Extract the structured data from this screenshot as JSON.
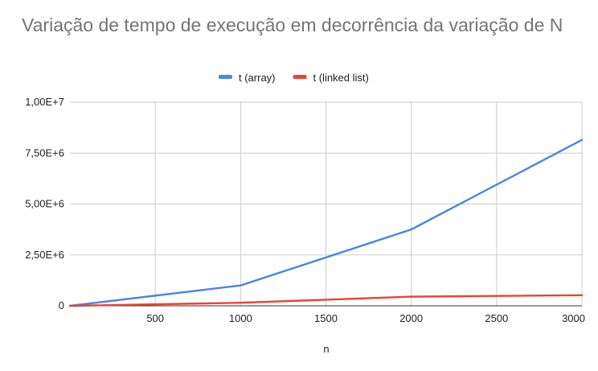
{
  "chart_data": {
    "type": "line",
    "title": "Variação de tempo de execução em decorrência da variação de N",
    "xlabel": "n",
    "ylabel": "",
    "x": [
      0,
      1000,
      2000,
      3000
    ],
    "xlim": [
      0,
      3000
    ],
    "ylim": [
      0,
      10000000
    ],
    "x_ticks": [
      500,
      1000,
      1500,
      2000,
      2500,
      3000
    ],
    "x_tick_labels": [
      "500",
      "1000",
      "1500",
      "2000",
      "2500",
      "3000"
    ],
    "y_ticks": [
      0,
      2500000,
      5000000,
      7500000,
      10000000
    ],
    "y_tick_labels": [
      "0",
      "2,50E+6",
      "5,00E+6",
      "7,50E+6",
      "1,00E+7"
    ],
    "grid": true,
    "legend_position": "top",
    "series": [
      {
        "name": "t (array)",
        "color": "#4a86e8",
        "values": [
          0,
          1000000,
          3750000,
          8150000
        ]
      },
      {
        "name": "t (linked list)",
        "color": "#ea4335",
        "values": [
          0,
          150000,
          450000,
          520000
        ]
      }
    ]
  }
}
